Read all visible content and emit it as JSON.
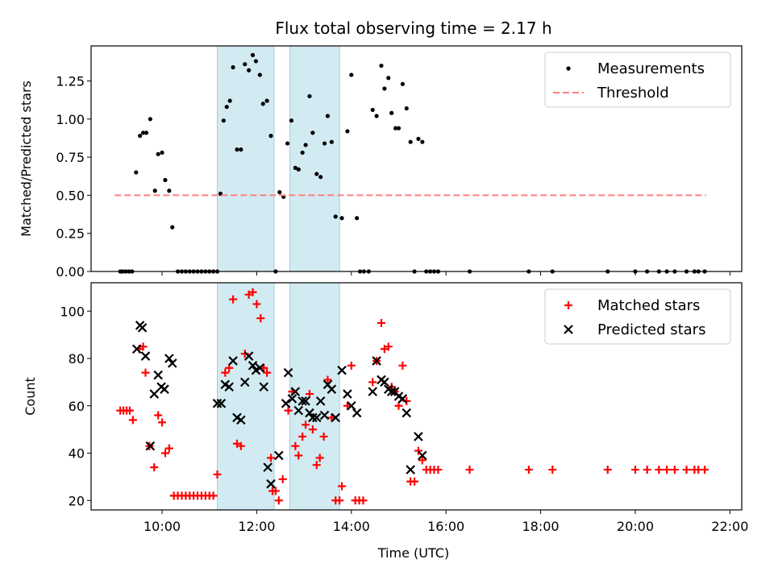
{
  "chart_data": [
    {
      "type": "scatter",
      "title": "Flux total observing time = 2.17 h",
      "xlabel": "",
      "ylabel": "Matched/Predicted stars",
      "xlim": [
        "08:30",
        "22:15"
      ],
      "ylim": [
        0,
        1.48
      ],
      "yticks": [
        0.0,
        0.25,
        0.5,
        0.75,
        1.0,
        1.25
      ],
      "ytick_labels": [
        "0.00",
        "0.25",
        "0.50",
        "0.75",
        "1.00",
        "1.25"
      ],
      "grid": false,
      "legend_position": "top-right",
      "shaded_regions": [
        [
          "11:10",
          "12:22"
        ],
        [
          "12:42",
          "13:45"
        ]
      ],
      "series": [
        {
          "name": "Measurements",
          "color": "#000000",
          "marker": "dot",
          "points": [
            [
              "09:07",
              0
            ],
            [
              "09:10",
              0
            ],
            [
              "09:14",
              0
            ],
            [
              "09:18",
              0
            ],
            [
              "09:22",
              0
            ],
            [
              "09:27",
              0.65
            ],
            [
              "09:32",
              0.89
            ],
            [
              "09:36",
              0.91
            ],
            [
              "09:40",
              0.91
            ],
            [
              "09:45",
              1.0
            ],
            [
              "09:51",
              0.53
            ],
            [
              "09:55",
              0.77
            ],
            [
              "10:00",
              0.78
            ],
            [
              "10:04",
              0.6
            ],
            [
              "10:09",
              0.53
            ],
            [
              "10:13",
              0.29
            ],
            [
              "10:20",
              0
            ],
            [
              "10:25",
              0
            ],
            [
              "10:30",
              0
            ],
            [
              "10:35",
              0
            ],
            [
              "10:40",
              0
            ],
            [
              "10:45",
              0
            ],
            [
              "10:50",
              0
            ],
            [
              "10:55",
              0
            ],
            [
              "11:00",
              0
            ],
            [
              "11:05",
              0
            ],
            [
              "11:10",
              0
            ],
            [
              "11:14",
              0.51
            ],
            [
              "11:18",
              0.99
            ],
            [
              "11:22",
              1.08
            ],
            [
              "11:26",
              1.12
            ],
            [
              "11:30",
              1.34
            ],
            [
              "11:35",
              0.8
            ],
            [
              "11:40",
              0.8
            ],
            [
              "11:45",
              1.36
            ],
            [
              "11:50",
              1.32
            ],
            [
              "11:55",
              1.42
            ],
            [
              "11:59",
              1.38
            ],
            [
              "12:04",
              1.29
            ],
            [
              "12:08",
              1.1
            ],
            [
              "12:13",
              1.12
            ],
            [
              "12:18",
              0.89
            ],
            [
              "12:24",
              0
            ],
            [
              "12:29",
              0.52
            ],
            [
              "12:34",
              0.49
            ],
            [
              "12:39",
              0.84
            ],
            [
              "12:44",
              0.99
            ],
            [
              "12:49",
              0.68
            ],
            [
              "12:53",
              0.67
            ],
            [
              "12:58",
              0.78
            ],
            [
              "13:02",
              0.83
            ],
            [
              "13:07",
              1.15
            ],
            [
              "13:11",
              0.91
            ],
            [
              "13:16",
              0.64
            ],
            [
              "13:21",
              0.62
            ],
            [
              "13:26",
              0.84
            ],
            [
              "13:30",
              1.02
            ],
            [
              "13:35",
              0.85
            ],
            [
              "13:40",
              0.36
            ],
            [
              "13:48",
              0.35
            ],
            [
              "13:55",
              0.92
            ],
            [
              "14:00",
              1.29
            ],
            [
              "14:07",
              0.35
            ],
            [
              "14:11",
              0
            ],
            [
              "14:16",
              0
            ],
            [
              "14:22",
              0
            ],
            [
              "14:27",
              1.06
            ],
            [
              "14:32",
              1.02
            ],
            [
              "14:38",
              1.35
            ],
            [
              "14:42",
              1.2
            ],
            [
              "14:47",
              1.27
            ],
            [
              "14:51",
              1.04
            ],
            [
              "14:56",
              0.94
            ],
            [
              "15:00",
              0.94
            ],
            [
              "15:05",
              1.23
            ],
            [
              "15:10",
              1.07
            ],
            [
              "15:15",
              0.85
            ],
            [
              "15:20",
              0
            ],
            [
              "15:25",
              0.87
            ],
            [
              "15:30",
              0.85
            ],
            [
              "15:35",
              0
            ],
            [
              "15:40",
              0
            ],
            [
              "15:45",
              0
            ],
            [
              "15:50",
              0
            ],
            [
              "16:30",
              0
            ],
            [
              "17:45",
              0
            ],
            [
              "18:15",
              0
            ],
            [
              "19:25",
              0
            ],
            [
              "20:00",
              0
            ],
            [
              "20:15",
              0
            ],
            [
              "20:30",
              0
            ],
            [
              "20:40",
              0
            ],
            [
              "20:50",
              0
            ],
            [
              "21:05",
              0
            ],
            [
              "21:15",
              0
            ],
            [
              "21:20",
              0
            ],
            [
              "21:28",
              0
            ]
          ]
        },
        {
          "name": "Threshold",
          "color": "#ff8080",
          "line_style": "dashed",
          "points": [
            [
              "09:00",
              0.5
            ],
            [
              "21:30",
              0.5
            ]
          ]
        }
      ]
    },
    {
      "type": "scatter",
      "title": "",
      "xlabel": "Time (UTC)",
      "ylabel": "Count",
      "xlim": [
        "08:30",
        "22:15"
      ],
      "ylim": [
        16,
        112
      ],
      "xticks": [
        "10:00",
        "12:00",
        "14:00",
        "16:00",
        "18:00",
        "20:00",
        "22:00"
      ],
      "yticks": [
        20,
        40,
        60,
        80,
        100
      ],
      "ytick_labels": [
        "20",
        "40",
        "60",
        "80",
        "100"
      ],
      "grid": false,
      "legend_position": "top-right",
      "shaded_regions": [
        [
          "11:10",
          "12:22"
        ],
        [
          "12:42",
          "13:45"
        ]
      ],
      "series": [
        {
          "name": "Matched stars",
          "color": "#ff0000",
          "marker": "plus",
          "points": [
            [
              "09:07",
              58
            ],
            [
              "09:11",
              58
            ],
            [
              "09:15",
              58
            ],
            [
              "09:19",
              58
            ],
            [
              "09:23",
              54
            ],
            [
              "09:31",
              84
            ],
            [
              "09:36",
              85
            ],
            [
              "09:39",
              74
            ],
            [
              "09:44",
              43
            ],
            [
              "09:50",
              34
            ],
            [
              "09:55",
              56
            ],
            [
              "10:00",
              53
            ],
            [
              "10:04",
              40
            ],
            [
              "10:09",
              42
            ],
            [
              "10:15",
              22
            ],
            [
              "10:20",
              22
            ],
            [
              "10:25",
              22
            ],
            [
              "10:30",
              22
            ],
            [
              "10:35",
              22
            ],
            [
              "10:40",
              22
            ],
            [
              "10:45",
              22
            ],
            [
              "10:50",
              22
            ],
            [
              "10:55",
              22
            ],
            [
              "11:00",
              22
            ],
            [
              "11:05",
              22
            ],
            [
              "11:10",
              31
            ],
            [
              "11:20",
              74
            ],
            [
              "11:25",
              76
            ],
            [
              "11:30",
              105
            ],
            [
              "11:35",
              44
            ],
            [
              "11:40",
              43
            ],
            [
              "11:45",
              82
            ],
            [
              "11:50",
              107
            ],
            [
              "11:55",
              108
            ],
            [
              "12:00",
              103
            ],
            [
              "12:05",
              97
            ],
            [
              "12:09",
              76
            ],
            [
              "12:13",
              74
            ],
            [
              "12:18",
              38
            ],
            [
              "12:20",
              24
            ],
            [
              "12:24",
              24
            ],
            [
              "12:28",
              20
            ],
            [
              "12:33",
              29
            ],
            [
              "12:40",
              58
            ],
            [
              "12:45",
              66
            ],
            [
              "12:49",
              43
            ],
            [
              "12:53",
              39
            ],
            [
              "12:58",
              47
            ],
            [
              "13:02",
              52
            ],
            [
              "13:07",
              65
            ],
            [
              "13:11",
              50
            ],
            [
              "13:16",
              35
            ],
            [
              "13:20",
              38
            ],
            [
              "13:25",
              47
            ],
            [
              "13:30",
              71
            ],
            [
              "13:35",
              55
            ],
            [
              "13:40",
              20
            ],
            [
              "13:45",
              20
            ],
            [
              "13:48",
              26
            ],
            [
              "13:55",
              60
            ],
            [
              "14:00",
              77
            ],
            [
              "14:05",
              20
            ],
            [
              "14:10",
              20
            ],
            [
              "14:15",
              20
            ],
            [
              "14:27",
              70
            ],
            [
              "14:32",
              79
            ],
            [
              "14:38",
              95
            ],
            [
              "14:42",
              84
            ],
            [
              "14:47",
              85
            ],
            [
              "14:51",
              68
            ],
            [
              "14:55",
              66
            ],
            [
              "15:00",
              60
            ],
            [
              "15:05",
              77
            ],
            [
              "15:10",
              62
            ],
            [
              "15:15",
              28
            ],
            [
              "15:20",
              28
            ],
            [
              "15:25",
              41
            ],
            [
              "15:30",
              37
            ],
            [
              "15:35",
              33
            ],
            [
              "15:40",
              33
            ],
            [
              "15:45",
              33
            ],
            [
              "15:50",
              33
            ],
            [
              "16:30",
              33
            ],
            [
              "17:45",
              33
            ],
            [
              "18:15",
              33
            ],
            [
              "19:25",
              33
            ],
            [
              "20:00",
              33
            ],
            [
              "20:15",
              33
            ],
            [
              "20:30",
              33
            ],
            [
              "20:40",
              33
            ],
            [
              "20:50",
              33
            ],
            [
              "21:05",
              33
            ],
            [
              "21:15",
              33
            ],
            [
              "21:20",
              33
            ],
            [
              "21:28",
              33
            ]
          ]
        },
        {
          "name": "Predicted stars",
          "color": "#000000",
          "marker": "x",
          "points": [
            [
              "09:28",
              84
            ],
            [
              "09:32",
              94
            ],
            [
              "09:35",
              93
            ],
            [
              "09:39",
              81
            ],
            [
              "09:45",
              43
            ],
            [
              "09:50",
              65
            ],
            [
              "09:55",
              73
            ],
            [
              "09:59",
              68
            ],
            [
              "10:03",
              67
            ],
            [
              "10:09",
              80
            ],
            [
              "10:13",
              78
            ],
            [
              "11:10",
              61
            ],
            [
              "11:15",
              61
            ],
            [
              "11:20",
              69
            ],
            [
              "11:25",
              68
            ],
            [
              "11:30",
              79
            ],
            [
              "11:35",
              55
            ],
            [
              "11:40",
              54
            ],
            [
              "11:45",
              70
            ],
            [
              "11:50",
              81
            ],
            [
              "11:55",
              77
            ],
            [
              "11:59",
              75
            ],
            [
              "12:04",
              76
            ],
            [
              "12:09",
              68
            ],
            [
              "12:14",
              34
            ],
            [
              "12:18",
              27
            ],
            [
              "12:28",
              39
            ],
            [
              "12:37",
              61
            ],
            [
              "12:40",
              74
            ],
            [
              "12:45",
              63
            ],
            [
              "12:49",
              66
            ],
            [
              "12:53",
              58
            ],
            [
              "12:58",
              62
            ],
            [
              "13:02",
              62
            ],
            [
              "13:07",
              57
            ],
            [
              "13:11",
              55
            ],
            [
              "13:16",
              55
            ],
            [
              "13:21",
              62
            ],
            [
              "13:26",
              56
            ],
            [
              "13:30",
              69
            ],
            [
              "13:35",
              67
            ],
            [
              "13:40",
              55
            ],
            [
              "13:48",
              75
            ],
            [
              "13:55",
              65
            ],
            [
              "14:00",
              60
            ],
            [
              "14:07",
              57
            ],
            [
              "14:27",
              66
            ],
            [
              "14:32",
              79
            ],
            [
              "14:38",
              71
            ],
            [
              "14:42",
              70
            ],
            [
              "14:47",
              67
            ],
            [
              "14:51",
              66
            ],
            [
              "14:55",
              66
            ],
            [
              "15:00",
              64
            ],
            [
              "15:05",
              63
            ],
            [
              "15:10",
              57
            ],
            [
              "15:15",
              33
            ],
            [
              "15:25",
              47
            ],
            [
              "15:30",
              39
            ]
          ]
        }
      ]
    }
  ]
}
